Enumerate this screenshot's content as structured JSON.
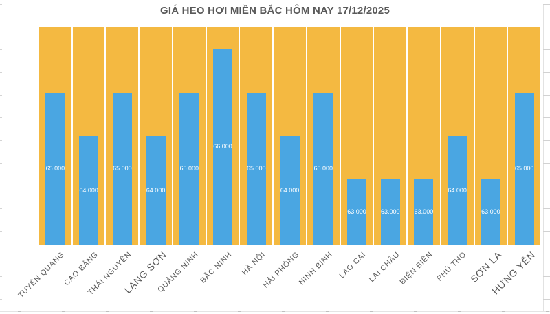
{
  "title": "GIÁ HEO HƠI MIỀN BẮC HÔM NAY 17/12/2025",
  "colors": {
    "bar": "#4aa6e2",
    "plot_background": "#f4b941",
    "value_label": "#ffffff",
    "axis_label": "#595959",
    "title": "#595959"
  },
  "chart_data": {
    "type": "bar",
    "title": "GIÁ HEO HƠI MIỀN BẮC HÔM NAY 17/12/2025",
    "xlabel": "",
    "ylabel": "",
    "ylim": [
      61500,
      66500
    ],
    "grid": false,
    "legend": "none",
    "unit": "VND/kg",
    "categories": [
      "TUYÊN QUANG",
      "CAO BẰNG",
      "THÁI NGUYÊN",
      "LẠNG SƠN",
      "QUẢNG NINH",
      "BẮC NINH",
      "HÀ NỘI",
      "HẢI PHÒNG",
      "NINH BÌNH",
      "LÀO CAI",
      "LAI CHÂU",
      "ĐIỆN BIÊN",
      "PHÚ THỌ",
      "SƠN LA",
      "HƯNG YÊN"
    ],
    "values": [
      65000,
      64000,
      65000,
      64000,
      65000,
      66000,
      65000,
      64000,
      65000,
      63000,
      63000,
      63000,
      64000,
      63000,
      65000
    ],
    "value_labels": [
      "65.000",
      "64.000",
      "65.000",
      "64.000",
      "65.000",
      "66.000",
      "65.000",
      "64.000",
      "65.000",
      "63.000",
      "63.000",
      "63.000",
      "64.000",
      "63.000",
      "65.000"
    ],
    "large_category_labels": [
      3,
      13,
      14
    ],
    "data_label_position": "center"
  }
}
